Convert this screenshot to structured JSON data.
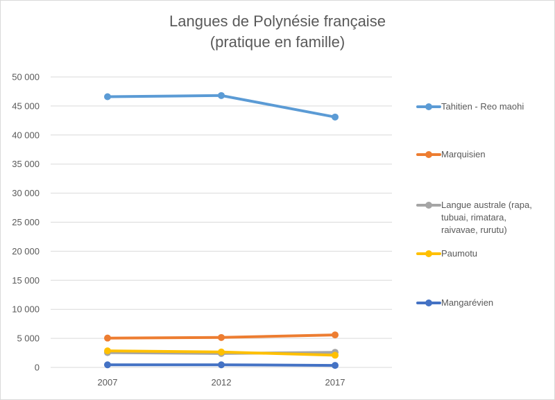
{
  "title_line1": "Langues de Polynésie française",
  "title_line2": "(pratique en famille)",
  "y_ticks": [
    "50 000",
    "45 000",
    "40 000",
    "35 000",
    "30 000",
    "25 000",
    "20 000",
    "15 000",
    "10 000",
    "5 000",
    "0"
  ],
  "x_ticks": [
    "2007",
    "2012",
    "2017"
  ],
  "legend": [
    {
      "label": "Tahitien - Reo maohi",
      "color": "#5b9bd5"
    },
    {
      "label": "Marquisien",
      "color": "#ed7d31"
    },
    {
      "label": "Langue australe (rapa, tubuai, rimatara, raivavae, rurutu)",
      "color": "#a5a5a5"
    },
    {
      "label": "Paumotu",
      "color": "#ffc000"
    },
    {
      "label": "Mangarévien",
      "color": "#4472c4"
    }
  ],
  "chart_data": {
    "type": "line",
    "title": "Langues de Polynésie française (pratique en famille)",
    "xlabel": "",
    "ylabel": "",
    "categories": [
      "2007",
      "2012",
      "2017"
    ],
    "ylim": [
      0,
      50000
    ],
    "ytick_step": 5000,
    "grid": true,
    "legend_position": "right",
    "series": [
      {
        "name": "Tahitien - Reo maohi",
        "color": "#5b9bd5",
        "values": [
          46600,
          46800,
          43100
        ]
      },
      {
        "name": "Marquisien",
        "color": "#ed7d31",
        "values": [
          5050,
          5150,
          5600
        ]
      },
      {
        "name": "Langue australe (rapa, tubuai, rimatara, raivavae, rurutu)",
        "color": "#a5a5a5",
        "values": [
          2550,
          2400,
          2600
        ]
      },
      {
        "name": "Paumotu",
        "color": "#ffc000",
        "values": [
          2850,
          2650,
          2100
        ]
      },
      {
        "name": "Mangarévien",
        "color": "#4472c4",
        "values": [
          450,
          450,
          350
        ]
      }
    ]
  }
}
